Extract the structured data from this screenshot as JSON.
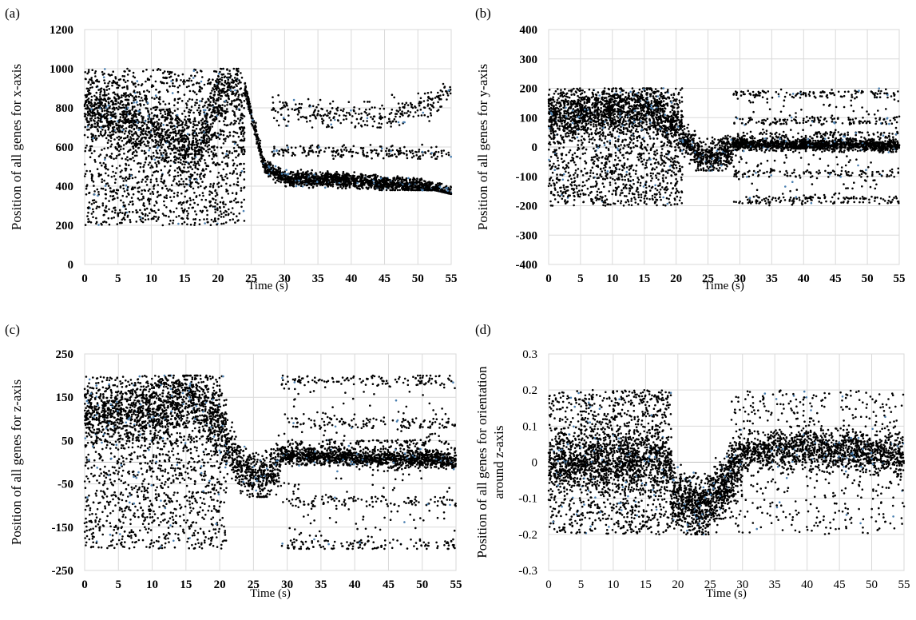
{
  "point_color": "#000000",
  "accent_point_color": "#4a7fb0",
  "grid_color": "#d9d9d9",
  "chart_data": [
    {
      "panel_label": "(a)",
      "type": "scatter",
      "title": "",
      "xlabel": "Time (s)",
      "ylabel": "Position of all genes for x-axis",
      "xlim": [
        0,
        55
      ],
      "ylim": [
        0,
        1200
      ],
      "xticks": [
        0,
        5,
        10,
        15,
        20,
        25,
        30,
        35,
        40,
        45,
        50,
        55
      ],
      "yticks": [
        0,
        200,
        400,
        600,
        800,
        1000,
        1200
      ],
      "tick_labels_x": [
        "0",
        "5",
        "10",
        "15",
        "20",
        "25",
        "30",
        "35",
        "40",
        "45",
        "50",
        "55"
      ],
      "tick_labels_y": [
        "0",
        "200",
        "400",
        "600",
        "800",
        "1000",
        "1200"
      ],
      "tick_bold": true,
      "grid": true,
      "points_per_second": 130,
      "series": [
        {
          "values_note": "",
          "segments": [
            {
              "x": [
                0,
                24
              ],
              "y": [
                200,
                1000
              ],
              "share": 0.55,
              "spread": 400,
              "center_curve": [
                [
                  0,
                  800
                ],
                [
                  10,
                  700
                ],
                [
                  17,
                  600
                ],
                [
                  20,
                  850
                ],
                [
                  23,
                  900
                ],
                [
                  24,
                  600
                ]
              ]
            },
            {
              "x": [
                24,
                55
              ],
              "y": [
                380,
                470
              ],
              "share": 0.35,
              "center_curve": [
                [
                  24,
                  900
                ],
                [
                  27,
                  500
                ],
                [
                  30,
                  440
                ],
                [
                  40,
                  430
                ],
                [
                  50,
                  400
                ],
                [
                  55,
                  360
                ]
              ]
            },
            {
              "x": [
                28,
                55
              ],
              "y": [
                700,
                880
              ],
              "share": 0.06,
              "center_curve": [
                [
                  28,
                  790
                ],
                [
                  35,
                  770
                ],
                [
                  45,
                  760
                ],
                [
                  50,
                  790
                ],
                [
                  55,
                  880
                ]
              ]
            },
            {
              "x": [
                28,
                55
              ],
              "y": [
                540,
                620
              ],
              "share": 0.04,
              "center_curve": [
                [
                  28,
                  580
                ],
                [
                  40,
                  580
                ],
                [
                  55,
                  560
                ]
              ]
            }
          ]
        }
      ]
    },
    {
      "panel_label": "(b)",
      "type": "scatter",
      "title": "",
      "xlabel": "Time (s)",
      "ylabel": "Position of all genes for y-axis",
      "xlim": [
        0,
        55
      ],
      "ylim": [
        -400,
        400
      ],
      "xticks": [
        0,
        5,
        10,
        15,
        20,
        25,
        30,
        35,
        40,
        45,
        50,
        55
      ],
      "yticks": [
        -400,
        -300,
        -200,
        -100,
        0,
        100,
        200,
        300,
        400
      ],
      "tick_labels_x": [
        "0",
        "5",
        "10",
        "15",
        "20",
        "25",
        "30",
        "35",
        "40",
        "45",
        "50",
        "55"
      ],
      "tick_labels_y": [
        "-400",
        "-300",
        "-200",
        "-100",
        "0",
        "100",
        "200",
        "300",
        "400"
      ],
      "tick_bold": true,
      "grid": true,
      "series": [
        {
          "segments": [
            {
              "x": [
                0,
                21
              ],
              "y": [
                -200,
                200
              ],
              "share": 0.5,
              "center_curve": [
                [
                  0,
                  100
                ],
                [
                  10,
                  120
                ],
                [
                  16,
                  140
                ],
                [
                  21,
                  60
                ]
              ]
            },
            {
              "x": [
                21,
                29
              ],
              "y": [
                -80,
                60
              ],
              "share": 0.1,
              "center_curve": [
                [
                  21,
                  40
                ],
                [
                  24,
                  -40
                ],
                [
                  27,
                  -30
                ],
                [
                  29,
                  10
                ]
              ]
            },
            {
              "x": [
                29,
                55
              ],
              "y": [
                -20,
                30
              ],
              "share": 0.25,
              "center_curve": [
                [
                  29,
                  10
                ],
                [
                  55,
                  5
                ]
              ]
            },
            {
              "x": [
                29,
                55
              ],
              "y": [
                -200,
                200
              ],
              "share": 0.15,
              "bands": [
                -180,
                -90,
                40,
                90,
                180
              ]
            }
          ]
        }
      ]
    },
    {
      "panel_label": "(c)",
      "type": "scatter",
      "title": "",
      "xlabel": "Time (s)",
      "ylabel": "Position of all genes for z-axis",
      "xlim": [
        0,
        55
      ],
      "ylim": [
        -250,
        250
      ],
      "xticks": [
        0,
        5,
        10,
        15,
        20,
        25,
        30,
        35,
        40,
        45,
        50,
        55
      ],
      "yticks": [
        -250,
        -150,
        -50,
        50,
        150,
        250
      ],
      "tick_labels_x": [
        "0",
        "5",
        "10",
        "15",
        "20",
        "25",
        "30",
        "35",
        "40",
        "45",
        "50",
        "55"
      ],
      "tick_labels_y": [
        "-250",
        "-150",
        "-50",
        "50",
        "150",
        "250"
      ],
      "tick_bold": true,
      "grid": true,
      "series": [
        {
          "segments": [
            {
              "x": [
                0,
                21
              ],
              "y": [
                -200,
                200
              ],
              "share": 0.5,
              "center_curve": [
                [
                  0,
                  100
                ],
                [
                  10,
                  120
                ],
                [
                  16,
                  150
                ],
                [
                  21,
                  60
                ]
              ]
            },
            {
              "x": [
                21,
                29
              ],
              "y": [
                -80,
                60
              ],
              "share": 0.1,
              "center_curve": [
                [
                  21,
                  40
                ],
                [
                  24,
                  -30
                ],
                [
                  27,
                  -40
                ],
                [
                  29,
                  10
                ]
              ]
            },
            {
              "x": [
                29,
                55
              ],
              "y": [
                -20,
                30
              ],
              "share": 0.25,
              "center_curve": [
                [
                  29,
                  15
                ],
                [
                  55,
                  5
                ]
              ]
            },
            {
              "x": [
                29,
                55
              ],
              "y": [
                -200,
                200
              ],
              "share": 0.15,
              "bands": [
                -190,
                -90,
                40,
                90,
                190
              ]
            }
          ]
        }
      ]
    },
    {
      "panel_label": "(d)",
      "type": "scatter",
      "title": "",
      "xlabel": "Time (s)",
      "ylabel_lines": [
        "Position of all genes for orientation",
        "around z-axis"
      ],
      "xlim": [
        0,
        55
      ],
      "ylim": [
        -0.3,
        0.3
      ],
      "xticks": [
        0,
        5,
        10,
        15,
        20,
        25,
        30,
        35,
        40,
        45,
        50,
        55
      ],
      "yticks": [
        -0.3,
        -0.2,
        -0.1,
        0,
        0.1,
        0.2,
        0.3
      ],
      "tick_labels_x": [
        "0",
        "5",
        "10",
        "15",
        "20",
        "25",
        "30",
        "35",
        "40",
        "45",
        "50",
        "55"
      ],
      "tick_labels_y": [
        "-0.3",
        "-0.2",
        "-0.1",
        "0",
        "0.1",
        "0.2",
        "0.3"
      ],
      "tick_bold": false,
      "grid": true,
      "series": [
        {
          "segments": [
            {
              "x": [
                0,
                19
              ],
              "y": [
                -0.2,
                0.2
              ],
              "share": 0.45,
              "center_curve": [
                [
                  0,
                  0
                ],
                [
                  19,
                  0
                ]
              ]
            },
            {
              "x": [
                19,
                30
              ],
              "y": [
                -0.2,
                0.0
              ],
              "share": 0.2,
              "center_curve": [
                [
                  19,
                  -0.1
                ],
                [
                  24,
                  -0.13
                ],
                [
                  27,
                  -0.07
                ],
                [
                  30,
                  0.02
                ]
              ]
            },
            {
              "x": [
                30,
                55
              ],
              "y": [
                -0.05,
                0.08
              ],
              "share": 0.25,
              "center_curve": [
                [
                  30,
                  0.03
                ],
                [
                  40,
                  0.04
                ],
                [
                  55,
                  0.02
                ]
              ]
            },
            {
              "x": [
                28,
                55
              ],
              "y": [
                -0.2,
                0.2
              ],
              "share": 0.1
            }
          ]
        }
      ]
    }
  ]
}
